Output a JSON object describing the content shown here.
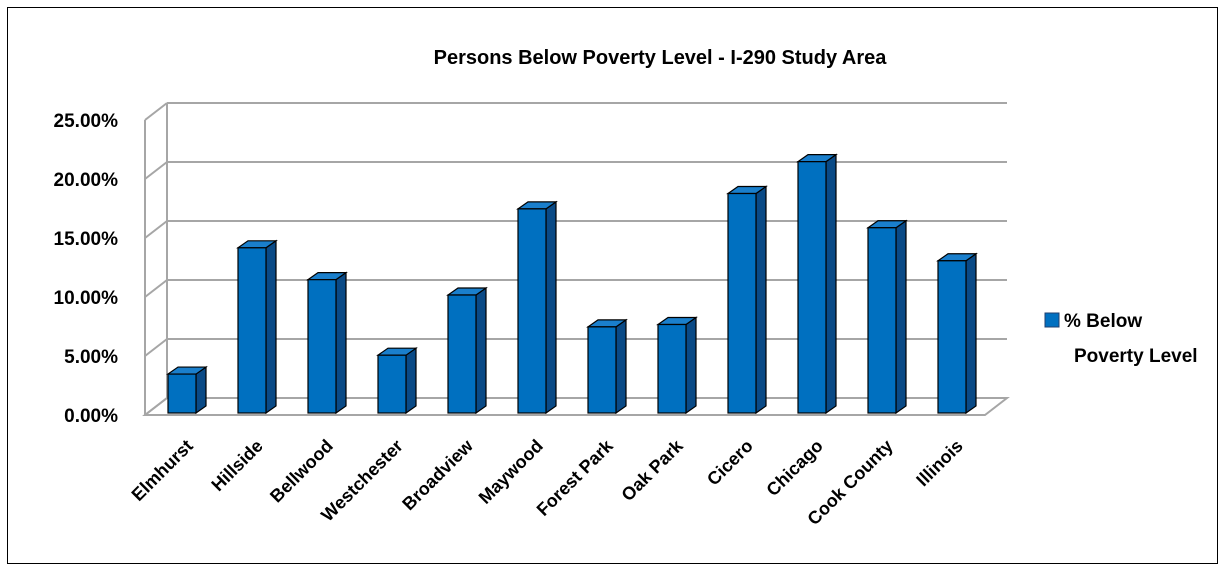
{
  "chart_data": {
    "type": "bar",
    "title": "Persons Below Poverty Level - I-290 Study Area",
    "categories": [
      "Elmhurst",
      "Hillside",
      "Bellwood",
      "Westchester",
      "Broadview",
      "Maywood",
      "Forest Park",
      "Oak Park",
      "Cicero",
      "Chicago",
      "Cook County",
      "Illinois"
    ],
    "series": [
      {
        "name": "% Below Poverty Level",
        "values": [
          3.3,
          14.0,
          11.3,
          4.9,
          10.0,
          17.3,
          7.3,
          7.5,
          18.6,
          21.3,
          15.7,
          12.9
        ],
        "color": "#0070C0"
      }
    ],
    "y_ticks": [
      "0.00%",
      "5.00%",
      "10.00%",
      "15.00%",
      "20.00%",
      "25.00%"
    ],
    "ylim": [
      0,
      25
    ],
    "grid": true,
    "legend_position": "right",
    "style": "3d-column"
  },
  "legend": {
    "line1": "% Below",
    "line2": "Poverty Level"
  }
}
